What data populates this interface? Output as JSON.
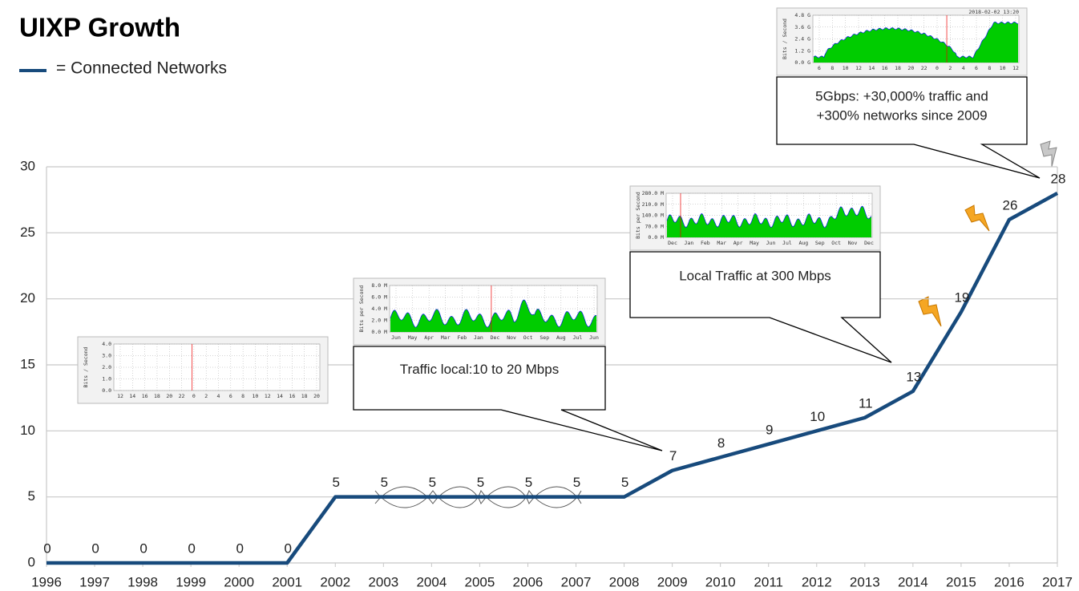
{
  "chart_data": {
    "type": "line",
    "title": "UIXP Growth",
    "x": [
      1996,
      1997,
      1998,
      1999,
      2000,
      2001,
      2002,
      2003,
      2004,
      2005,
      2006,
      2007,
      2008,
      2009,
      2010,
      2011,
      2012,
      2013,
      2014,
      2015,
      2016,
      2017
    ],
    "series": [
      {
        "name": "= Connected Networks",
        "color": "#174a7c",
        "values": [
          0,
          0,
          0,
          0,
          0,
          0,
          5,
          5,
          5,
          5,
          5,
          5,
          5,
          7,
          8,
          9,
          10,
          11,
          13,
          19,
          26,
          28
        ]
      }
    ],
    "xlim": [
      1996,
      2017
    ],
    "xticks": [
      1996,
      1997,
      1998,
      1999,
      2000,
      2001,
      2002,
      2003,
      2004,
      2005,
      2006,
      2007,
      2008,
      2009,
      2010,
      2011,
      2012,
      2013,
      2014,
      2015,
      2016,
      2017
    ],
    "ylim": [
      0,
      30
    ],
    "yticks": [
      0,
      5,
      10,
      15,
      20,
      25,
      30
    ],
    "grid": true,
    "annotations": [
      {
        "lines": [
          "Traffic local:10 to 20 Mbps"
        ]
      },
      {
        "lines": [
          "Local Traffic  at   300 Mbps"
        ]
      },
      {
        "lines": [
          "5Gbps: +30,000% traffic and",
          "+300% networks since 2009"
        ]
      }
    ],
    "insets": [
      {
        "ylabel": "Bits / Second",
        "yticks": [
          "4.0",
          "3.0",
          "2.0",
          "1.0",
          "0.0"
        ],
        "xticks": [
          "12",
          "14",
          "16",
          "18",
          "20",
          "22",
          "0",
          "2",
          "4",
          "6",
          "8",
          "10",
          "12",
          "14",
          "16",
          "18",
          "20"
        ]
      },
      {
        "ylabel": "Bits per Second",
        "yticks": [
          "8.0 M",
          "6.0 M",
          "4.0 M",
          "2.0 M",
          "0.0 M"
        ],
        "xticks": [
          "Jun",
          "May",
          "Apr",
          "Mar",
          "Feb",
          "Jan",
          "Dec",
          "Nov",
          "Oct",
          "Sep",
          "Aug",
          "Jul",
          "Jun"
        ]
      },
      {
        "ylabel": "Bits per Second",
        "yticks": [
          "280.0 M",
          "210.0 M",
          "140.0 M",
          "70.0 M",
          "0.0 M"
        ],
        "xticks": [
          "Dec",
          "Jan",
          "Feb",
          "Mar",
          "Apr",
          "May",
          "Jun",
          "Jul",
          "Aug",
          "Sep",
          "Oct",
          "Nov",
          "Dec"
        ]
      },
      {
        "ylabel": "Bits / Second",
        "yticks": [
          "4.8 G",
          "3.6 G",
          "2.4 G",
          "1.2 G",
          "0.0 G"
        ],
        "xticks": [
          "6",
          "8",
          "10",
          "12",
          "14",
          "16",
          "18",
          "20",
          "22",
          "0",
          "2",
          "4",
          "6",
          "8",
          "10",
          "12"
        ],
        "stamp": "2018-02-02 13:20"
      }
    ]
  }
}
